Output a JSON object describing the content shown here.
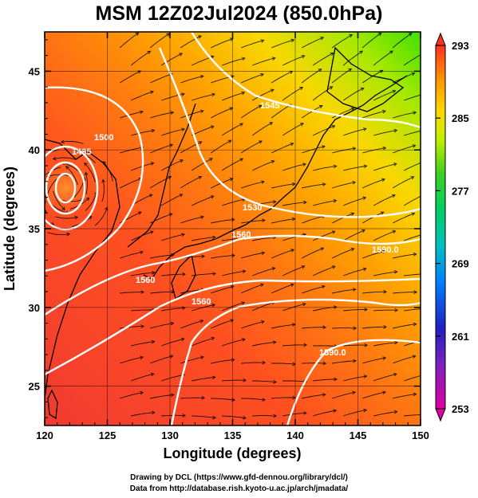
{
  "title": "MSM 12Z02Jul2024 (850.0hPa)",
  "x_axis": {
    "label": "Longitude (degrees)",
    "ticks": [
      "120",
      "125",
      "130",
      "135",
      "140",
      "145",
      "150"
    ],
    "range": [
      120,
      150
    ]
  },
  "y_axis": {
    "label": "Latitude  (degrees)",
    "ticks": [
      "25",
      "30",
      "35",
      "40",
      "45"
    ],
    "range": [
      22.5,
      47.5
    ]
  },
  "colorbar": {
    "ticks": [
      "293",
      "285",
      "277",
      "269",
      "261",
      "253"
    ],
    "range": [
      253,
      293
    ],
    "colors": [
      "#e00080",
      "#2020c0",
      "#00a0ff",
      "#00d080",
      "#20d020",
      "#c0f000",
      "#ffe000",
      "#ffa000",
      "#ff6a00",
      "#ff3020"
    ]
  },
  "contours": {
    "line_color": "#ffffff",
    "labels": [
      "1485",
      "1500",
      "1545",
      "1530",
      "1560",
      "1560",
      "1560",
      "1590.0",
      "1590.0"
    ]
  },
  "colors": {
    "warm": "#ff3a2a",
    "orange": "#ff8a10",
    "yellow": "#f8d800",
    "green": "#60e000",
    "coast": "#000000"
  },
  "credits": {
    "line1": "Drawing by DCL (https://www.gfd-dennou.org/library/dcl/)",
    "line2": "Data from http://database.rish.kyoto-u.ac.jp/arch/jmadata/"
  }
}
